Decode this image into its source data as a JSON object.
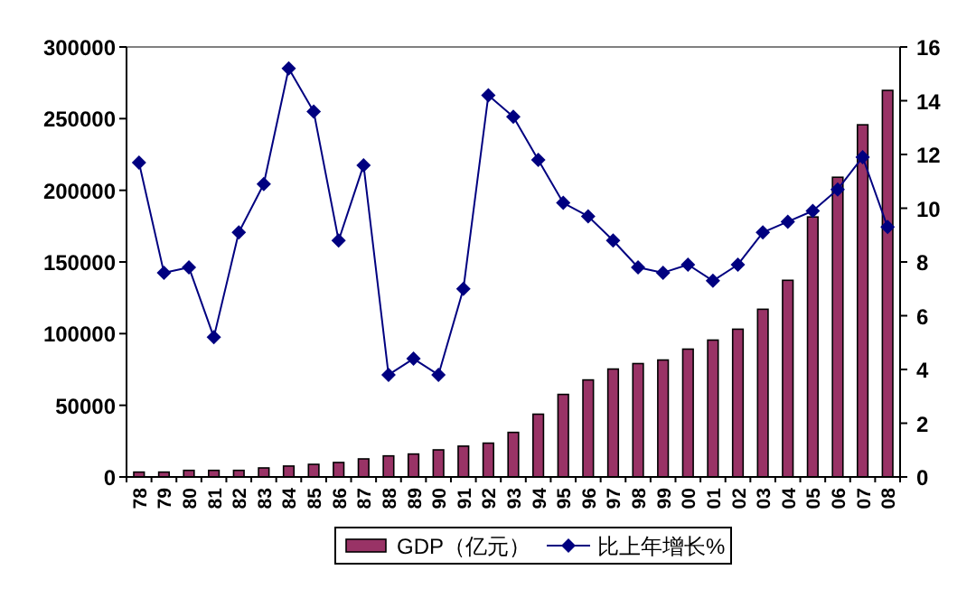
{
  "chart_data": {
    "type": "bar",
    "categories": [
      "78",
      "79",
      "80",
      "81",
      "82",
      "83",
      "84",
      "85",
      "86",
      "87",
      "88",
      "89",
      "90",
      "91",
      "92",
      "93",
      "94",
      "95",
      "96",
      "97",
      "98",
      "99",
      "00",
      "01",
      "02",
      "03",
      "04",
      "05",
      "06",
      "07",
      "08"
    ],
    "series": [
      {
        "name": "GDP（亿元）",
        "color": "#993366",
        "values": [
          3400,
          3400,
          4600,
          4600,
          4600,
          6300,
          7600,
          8800,
          10100,
          12600,
          14700,
          16000,
          18900,
          21500,
          23600,
          31100,
          43800,
          57600,
          67700,
          75300,
          79100,
          81600,
          89200,
          95500,
          103100,
          117000,
          137200,
          181400,
          209100,
          245700,
          269700
        ]
      },
      {
        "name": "比上年增长%",
        "type": "line",
        "axis": "y2",
        "color": "#000080",
        "values": [
          11.7,
          7.6,
          7.8,
          5.2,
          9.1,
          10.9,
          15.2,
          13.6,
          8.8,
          11.6,
          3.8,
          4.4,
          3.8,
          7.0,
          14.2,
          13.4,
          11.8,
          10.2,
          9.7,
          8.8,
          7.8,
          7.6,
          7.9,
          7.3,
          7.9,
          9.1,
          9.5,
          9.9,
          10.7,
          11.9,
          9.3
        ]
      }
    ],
    "marker": "diamond",
    "ylim": [
      0,
      300000
    ],
    "yticks": [
      0,
      50000,
      100000,
      150000,
      200000,
      250000,
      300000
    ],
    "y2lim": [
      0,
      16
    ],
    "y2ticks": [
      0,
      2,
      4,
      6,
      8,
      10,
      12,
      14,
      16
    ],
    "legend": "bottom"
  }
}
